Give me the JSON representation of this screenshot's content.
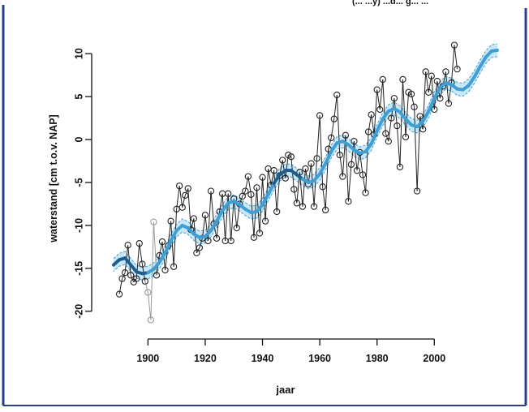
{
  "header": {
    "cropped_text": "(... ...y) ...d... g... ..."
  },
  "chart_data": {
    "type": "line",
    "title": "",
    "xlabel": "jaar",
    "ylabel": "waterstand [cm t.o.v. NAP]",
    "xlim": [
      1888,
      2024
    ],
    "ylim": [
      -22,
      12
    ],
    "xticks": [
      1900,
      1920,
      1940,
      1960,
      1980,
      2000
    ],
    "yticks": [
      -20,
      -15,
      -10,
      -5,
      0,
      5,
      10
    ],
    "grid": false,
    "legend": "none",
    "colors": {
      "observed": "#222222",
      "observed_gap": "#9a9a9a",
      "trend_dark": "#1f5d8f",
      "trend_light": "#3f9fd4",
      "band": "#9ad4f0",
      "frame": "#2a3f8c"
    },
    "series": [
      {
        "type": "scatter_line",
        "x": [
          1890,
          1891,
          1892,
          1893,
          1894,
          1895,
          1896,
          1897,
          1898,
          1899,
          1900,
          1901,
          1902,
          1903,
          1904,
          1905,
          1906,
          1907,
          1908,
          1909,
          1910,
          1911,
          1912,
          1913,
          1914,
          1915,
          1916,
          1917,
          1918,
          1919,
          1920,
          1921,
          1922,
          1923,
          1924,
          1925,
          1926,
          1927,
          1928,
          1929,
          1930,
          1931,
          1932,
          1933,
          1934,
          1935,
          1936,
          1937,
          1938,
          1939,
          1940,
          1941,
          1942,
          1943,
          1944,
          1945,
          1946,
          1947,
          1948,
          1949,
          1950,
          1951,
          1952,
          1953,
          1954,
          1955,
          1956,
          1957,
          1958,
          1959,
          1960,
          1961,
          1962,
          1963,
          1964,
          1965,
          1966,
          1967,
          1968,
          1969,
          1970,
          1971,
          1972,
          1973,
          1974,
          1975,
          1976,
          1977,
          1978,
          1979,
          1980,
          1981,
          1982,
          1983,
          1984,
          1985,
          1986,
          1987,
          1988,
          1989,
          1990,
          1991,
          1992,
          1993,
          1994,
          1995,
          1996,
          1997,
          1998,
          1999,
          2000,
          2001,
          2002,
          2003,
          2004,
          2005,
          2006,
          2007,
          2008
        ],
        "values": [
          -18,
          -16.2,
          -15.5,
          -12.3,
          -15.8,
          -16.6,
          -16.2,
          -12.1,
          -14.5,
          -16.5,
          -17.8,
          -21,
          -9.6,
          -15.8,
          -13.5,
          -11.9,
          -15.2,
          -12.4,
          -9.5,
          -14.8,
          -8.1,
          -5.4,
          -7.9,
          -6.5,
          -5.7,
          -10.5,
          -9.2,
          -13.2,
          -12.6,
          -11.5,
          -8.8,
          -11.8,
          -6,
          -9.8,
          -11.5,
          -8.4,
          -6.3,
          -11.8,
          -6.3,
          -11.8,
          -6.9,
          -10.3,
          -7.5,
          -6.6,
          -6,
          -4.3,
          -6.4,
          -11.4,
          -5.6,
          -10.9,
          -4.4,
          -9.5,
          -3.4,
          -5.3,
          -3.6,
          -8.4,
          -4.2,
          -2.4,
          -4.5,
          -1.8,
          -2,
          -5.8,
          -7.4,
          -3.8,
          -7.8,
          -3.4,
          -5.2,
          -2.8,
          -7.8,
          -2.2,
          2.8,
          -5.5,
          -8.2,
          -1.1,
          0.2,
          2.4,
          5.2,
          -1.8,
          -4.3,
          0.5,
          -7.2,
          -2.9,
          -0.2,
          -3.6,
          -1.5,
          -4.1,
          -6.2,
          0.9,
          2.9,
          0.6,
          5.8,
          3.5,
          7,
          0.7,
          -0.2,
          2.5,
          4.8,
          1.6,
          -3.2,
          7,
          0.3,
          5.5,
          5.3,
          3.8,
          -6,
          2.7,
          1.2,
          7.9,
          5.5,
          7.4,
          3.5,
          6.8,
          4.8,
          6.2,
          7.9,
          4.2,
          6.6,
          11,
          8.2
        ]
      },
      {
        "type": "trend_line",
        "x": [
          1888,
          1890,
          1892,
          1894,
          1896,
          1898,
          1900,
          1902,
          1904,
          1906,
          1908,
          1910,
          1912,
          1914,
          1916,
          1918,
          1920,
          1922,
          1924,
          1926,
          1928,
          1930,
          1932,
          1934,
          1936,
          1938,
          1940,
          1942,
          1944,
          1946,
          1948,
          1950,
          1952,
          1954,
          1956,
          1958,
          1960,
          1962,
          1964,
          1966,
          1968,
          1970,
          1972,
          1974,
          1976,
          1978,
          1980,
          1982,
          1984,
          1986,
          1988,
          1990,
          1992,
          1994,
          1996,
          1998,
          2000,
          2002,
          2004,
          2006,
          2008,
          2010,
          2012,
          2014,
          2016,
          2018,
          2020,
          2022
        ],
        "values": [
          -14.6,
          -14,
          -13.8,
          -14.6,
          -15.4,
          -15.6,
          -15.5,
          -15.1,
          -14.3,
          -13.2,
          -11.8,
          -10.6,
          -10,
          -10.3,
          -11,
          -11.4,
          -11.3,
          -10.6,
          -9.5,
          -8.3,
          -7.4,
          -7.2,
          -7.6,
          -8.1,
          -8.5,
          -8.4,
          -7.6,
          -6.4,
          -5.1,
          -4.1,
          -3.6,
          -3.6,
          -4.1,
          -4.6,
          -5,
          -4.8,
          -4,
          -2.8,
          -1.4,
          -0.4,
          -0.2,
          -0.6,
          -1.2,
          -1.6,
          -1.4,
          -0.5,
          1,
          2.4,
          3.3,
          3.6,
          3.2,
          2.4,
          1.7,
          1.5,
          2.1,
          3.3,
          4.8,
          6,
          6.6,
          6.4,
          5.9,
          5.8,
          6.3,
          7.3,
          8.5,
          9.6,
          10.3,
          10.4
        ]
      }
    ]
  }
}
